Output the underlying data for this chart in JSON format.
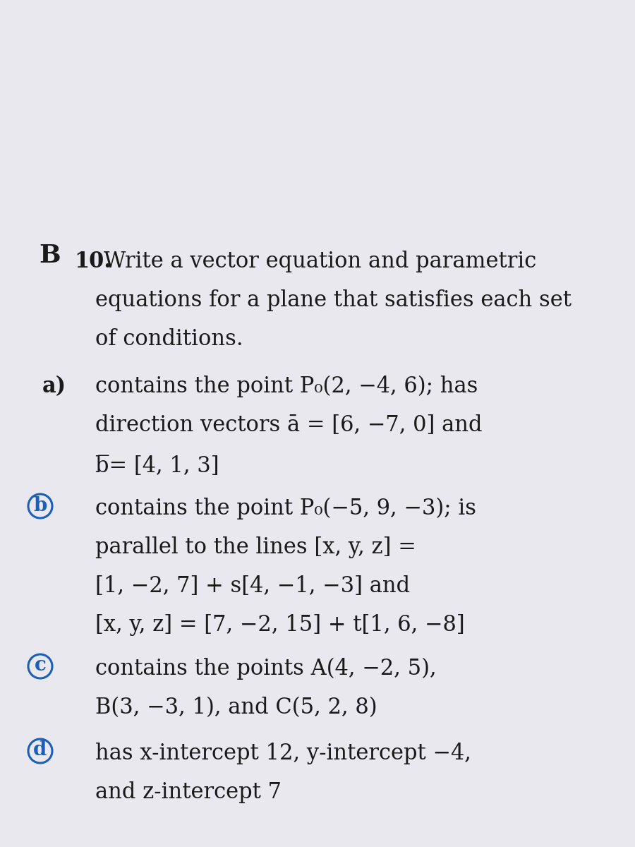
{
  "bg_wood_color": "#7a5020",
  "bg_paper_color": "#e8e8ee",
  "text_color": "#1a1a1a",
  "circle_color": "#1a5fbb",
  "title_B": "B",
  "title_num": "10.",
  "title_text1": "Write a vector equation and parametric",
  "title_text2": "equations for a plane that satisfies each set",
  "title_text3": "of conditions.",
  "part_a_label": "a)",
  "part_a_line1": "contains the point P₀(2, −4, 6); has",
  "part_a_line2": "direction vectors ā = [6, −7, 0] and",
  "part_a_line3": "b̅= [4, 1, 3]",
  "part_b_circle": "b",
  "part_b_line1": "contains the point P₀(−5, 9, −3); is",
  "part_b_line2": "parallel to the lines [x, y, z] =",
  "part_b_line3": "[1, −2, 7] + s[4, −1, −3] and",
  "part_b_line4": "[x, y, z] = [7, −2, 15] + t[1, 6, −8]",
  "part_c_circle": "c",
  "part_c_line1": "contains the points A(4, −2, 5),",
  "part_c_line2": "B(3, −3, 1), and C(5, 2, 8)",
  "part_d_circle": "d",
  "part_d_line1": "has x-intercept 12, y-intercept −4,",
  "part_d_line2": "and z-intercept 7",
  "fig_width": 9.0,
  "fig_height": 12.0,
  "dpi": 100
}
